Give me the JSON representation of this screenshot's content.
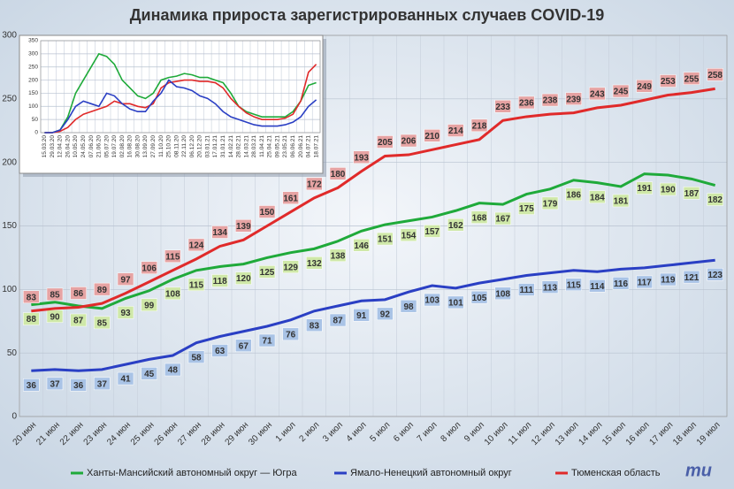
{
  "chart_data": [
    {
      "type": "line",
      "title": "Динамика прироста зарегистрированных случаев COVID-19",
      "categories": [
        "20 июн",
        "21 июн",
        "22 июн",
        "23 июн",
        "24 июн",
        "25 июн",
        "26 июн",
        "27 июн",
        "28 июн",
        "29 июн",
        "30 июн",
        "1 июл",
        "2 июл",
        "3 июл",
        "4 июл",
        "5 июл",
        "6 июл",
        "7 июл",
        "8 июл",
        "9 июл",
        "10 июл",
        "11 июл",
        "12 июл",
        "13 июл",
        "14 июл",
        "15 июл",
        "16 июл",
        "17 июл",
        "18 июл",
        "19 июл"
      ],
      "series": [
        {
          "name": "Ханты-Мансийский автономный округ — Югра",
          "color": "#1faa3a",
          "label_color": "#cfe8a8",
          "values": [
            88,
            90,
            87,
            85,
            93,
            99,
            108,
            115,
            118,
            120,
            125,
            129,
            132,
            138,
            146,
            151,
            154,
            157,
            162,
            168,
            167,
            175,
            179,
            186,
            184,
            181,
            191,
            190,
            187,
            182
          ]
        },
        {
          "name": "Ямало-Ненецкий автономный округ",
          "color": "#2a3fc4",
          "label_color": "#a9c3e6",
          "values": [
            36,
            37,
            36,
            37,
            41,
            45,
            48,
            58,
            63,
            67,
            71,
            76,
            83,
            87,
            91,
            92,
            98,
            103,
            101,
            105,
            108,
            111,
            113,
            115,
            114,
            116,
            117,
            119,
            121,
            123
          ]
        },
        {
          "name": "Тюменская область",
          "color": "#e02a2a",
          "label_color": "#e6a3a3",
          "values": [
            83,
            85,
            86,
            89,
            97,
            106,
            115,
            124,
            134,
            139,
            150,
            161,
            172,
            180,
            193,
            205,
            206,
            210,
            214,
            218,
            233,
            236,
            238,
            239,
            243,
            245,
            249,
            253,
            255,
            258
          ]
        }
      ],
      "ylim": [
        0,
        300
      ],
      "yticks": [
        0,
        50,
        100,
        150,
        200,
        250,
        300
      ],
      "grid": true
    },
    {
      "type": "line",
      "categories": [
        "15.03.20",
        "29.03.20",
        "12.04.20",
        "26.04.20",
        "10.05.20",
        "24.05.20",
        "07.06.20",
        "21.06.20",
        "05.07.20",
        "19.07.20",
        "02.08.20",
        "16.08.20",
        "30.08.20",
        "13.09.20",
        "27.09.20",
        "11.10.20",
        "25.10.20",
        "08.11.20",
        "22.11.20",
        "06.12.20",
        "20.12.20",
        "03.01.21",
        "17.01.21",
        "31.01.21",
        "14.02.21",
        "28.02.21",
        "14.03.21",
        "28.03.21",
        "11.04.21",
        "25.04.21",
        "09.05.21",
        "23.05.21",
        "06.06.21",
        "20.06.21",
        "04.07.21",
        "18.07.21"
      ],
      "series": [
        {
          "color": "#1faa3a",
          "values": [
            0,
            0,
            10,
            60,
            150,
            200,
            250,
            300,
            290,
            260,
            200,
            170,
            140,
            130,
            150,
            200,
            210,
            215,
            225,
            220,
            210,
            210,
            200,
            190,
            150,
            100,
            80,
            70,
            60,
            60,
            60,
            60,
            80,
            120,
            180,
            190
          ]
        },
        {
          "color": "#e02a2a",
          "values": [
            0,
            0,
            5,
            20,
            50,
            70,
            80,
            90,
            100,
            120,
            110,
            110,
            100,
            95,
            110,
            170,
            190,
            195,
            200,
            200,
            195,
            195,
            190,
            170,
            130,
            100,
            75,
            60,
            50,
            50,
            50,
            55,
            70,
            120,
            230,
            260
          ]
        },
        {
          "color": "#2a3fc4",
          "values": [
            0,
            0,
            10,
            50,
            100,
            120,
            110,
            100,
            150,
            140,
            110,
            90,
            80,
            80,
            120,
            150,
            200,
            175,
            170,
            160,
            140,
            130,
            110,
            80,
            60,
            50,
            40,
            30,
            25,
            25,
            25,
            30,
            40,
            60,
            100,
            125
          ]
        }
      ],
      "ylim": [
        0,
        350
      ],
      "yticks": [
        0,
        50,
        100,
        150,
        200,
        250,
        300,
        350
      ],
      "grid": true
    }
  ],
  "logo": "mu"
}
